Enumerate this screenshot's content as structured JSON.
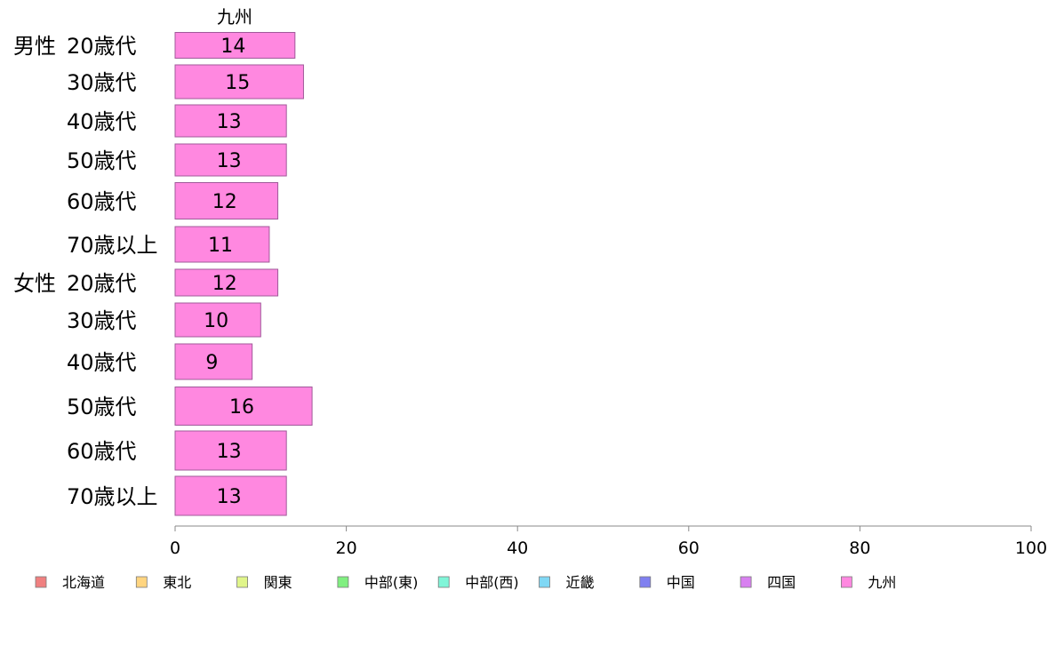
{
  "chart_data": {
    "type": "bar",
    "orientation": "horizontal",
    "column_header": "九州",
    "groups": [
      {
        "label": "男性",
        "categories": [
          "20歳代",
          "30歳代",
          "40歳代",
          "50歳代",
          "60歳代",
          "70歳以上"
        ]
      },
      {
        "label": "女性",
        "categories": [
          "20歳代",
          "30歳代",
          "40歳代",
          "50歳代",
          "60歳代",
          "70歳以上"
        ]
      }
    ],
    "series": [
      {
        "name": "九州",
        "values": [
          14,
          15,
          13,
          13,
          12,
          11,
          12,
          10,
          9,
          16,
          13,
          13
        ]
      }
    ],
    "bar_labels": [
      "14",
      "15",
      "13",
      "13",
      "12",
      "11",
      "12",
      "10",
      "9",
      "16",
      "13",
      "13"
    ],
    "xlim": [
      0,
      100
    ],
    "xticks": [
      "0",
      "20",
      "40",
      "60",
      "80",
      "100"
    ],
    "grid": false,
    "legend_position": "bottom",
    "legend": [
      {
        "name": "北海道",
        "color": "#f08080"
      },
      {
        "name": "東北",
        "color": "#ffd580"
      },
      {
        "name": "関東",
        "color": "#e0f58a"
      },
      {
        "name": "中部(東)",
        "color": "#80ef80"
      },
      {
        "name": "中部(西)",
        "color": "#80f5d8"
      },
      {
        "name": "近畿",
        "color": "#80d8f5"
      },
      {
        "name": "中国",
        "color": "#8080f0"
      },
      {
        "name": "四国",
        "color": "#d880f0"
      },
      {
        "name": "九州",
        "color": "#ff88e0"
      }
    ]
  }
}
